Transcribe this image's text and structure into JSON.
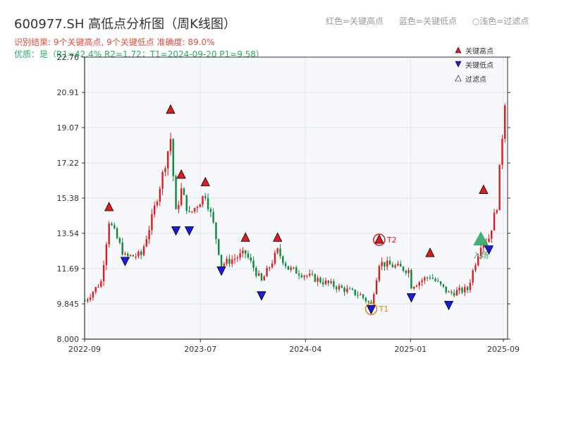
{
  "header": {
    "title": "600977.SH 高低点分析图（周K线图）",
    "legend": [
      "红色=关键高点",
      "蓝色=关键低点",
      "○浅色=过滤点"
    ],
    "result_line": "识别结果: 9个关键高点, 9个关键低点  准确度: 89.0%",
    "quality_line": "优质：是（R1=42.4%  R2=1.72；T1=2024-09-20 P1=9.58）"
  },
  "colors": {
    "up": "#e31a1c",
    "down": "#0a8a3a",
    "high_marker": "#e31a1c",
    "low_marker": "#1a1ae6",
    "t_marker": "#e6850e",
    "entry": "#2fa866",
    "plot_bg": "#f6f8fb",
    "grid": "#e3e6ea"
  },
  "chart_data": {
    "type": "candlestick",
    "title": "600977.SH 高低点分析图（周K线图）",
    "ylim": [
      8.0,
      22.76
    ],
    "yticks": [
      "22.76",
      "20.91",
      "19.07",
      "17.22",
      "15.38",
      "13.54",
      "11.69",
      "9.845",
      "8.000"
    ],
    "xticks": [
      "2022-09",
      "2023-07",
      "2024-04",
      "2025-01",
      "2025-09"
    ],
    "legend": {
      "items": [
        "关键高点",
        "关键低点",
        "过滤点"
      ],
      "placement": "top-right"
    },
    "key_highs": [
      {
        "date": "2022-11-04",
        "price": 14.9
      },
      {
        "date": "2023-04-14",
        "price": 20.0
      },
      {
        "date": "2023-05-12",
        "price": 16.6
      },
      {
        "date": "2023-07-14",
        "price": 16.2
      },
      {
        "date": "2023-10-27",
        "price": 13.3
      },
      {
        "date": "2024-01-19",
        "price": 13.3
      },
      {
        "date": "2024-10-11",
        "price": 13.2
      },
      {
        "date": "2025-02-21",
        "price": 12.5
      },
      {
        "date": "2025-07-11",
        "price": 15.8
      }
    ],
    "key_lows": [
      {
        "date": "2022-12-16",
        "price": 12.1
      },
      {
        "date": "2023-04-28",
        "price": 13.7
      },
      {
        "date": "2023-06-02",
        "price": 13.7
      },
      {
        "date": "2023-08-25",
        "price": 11.6
      },
      {
        "date": "2023-12-08",
        "price": 10.3
      },
      {
        "date": "2024-09-20",
        "price": 9.58
      },
      {
        "date": "2025-01-03",
        "price": 10.2
      },
      {
        "date": "2025-04-11",
        "price": 9.8
      },
      {
        "date": "2025-07-25",
        "price": 12.7
      }
    ],
    "annotations": [
      {
        "label": "T2",
        "date": "2024-10-11",
        "price": 13.2
      },
      {
        "label": "T1",
        "date": "2024-09-20",
        "price": 9.58
      },
      {
        "label": "入场",
        "date": "2025-07-04",
        "price": 13.2
      }
    ],
    "anchors": [
      {
        "date": "2022-09-02",
        "price": 10.0
      },
      {
        "date": "2022-10-14",
        "price": 11.0
      },
      {
        "date": "2022-11-04",
        "price": 14.2
      },
      {
        "date": "2022-12-16",
        "price": 12.3
      },
      {
        "date": "2023-01-27",
        "price": 12.4
      },
      {
        "date": "2023-02-24",
        "price": 14.3
      },
      {
        "date": "2023-03-24",
        "price": 16.6
      },
      {
        "date": "2023-04-14",
        "price": 18.5
      },
      {
        "date": "2023-04-28",
        "price": 14.6
      },
      {
        "date": "2023-05-12",
        "price": 15.8
      },
      {
        "date": "2023-06-02",
        "price": 14.5
      },
      {
        "date": "2023-07-14",
        "price": 15.6
      },
      {
        "date": "2023-08-04",
        "price": 14.0
      },
      {
        "date": "2023-08-25",
        "price": 11.9
      },
      {
        "date": "2023-10-27",
        "price": 12.5
      },
      {
        "date": "2023-12-08",
        "price": 11.0
      },
      {
        "date": "2024-01-19",
        "price": 12.6
      },
      {
        "date": "2024-02-16",
        "price": 11.7
      },
      {
        "date": "2024-05-31",
        "price": 10.9
      },
      {
        "date": "2024-08-23",
        "price": 10.3
      },
      {
        "date": "2024-09-20",
        "price": 9.8
      },
      {
        "date": "2024-10-11",
        "price": 12.0
      },
      {
        "date": "2024-11-22",
        "price": 11.8
      },
      {
        "date": "2024-12-27",
        "price": 11.6
      },
      {
        "date": "2025-01-03",
        "price": 10.8
      },
      {
        "date": "2025-02-21",
        "price": 11.3
      },
      {
        "date": "2025-04-11",
        "price": 10.4
      },
      {
        "date": "2025-05-30",
        "price": 10.6
      },
      {
        "date": "2025-07-04",
        "price": 13.0
      },
      {
        "date": "2025-07-25",
        "price": 13.3
      },
      {
        "date": "2025-08-15",
        "price": 15.0
      },
      {
        "date": "2025-09-05",
        "price": 20.5
      }
    ]
  }
}
